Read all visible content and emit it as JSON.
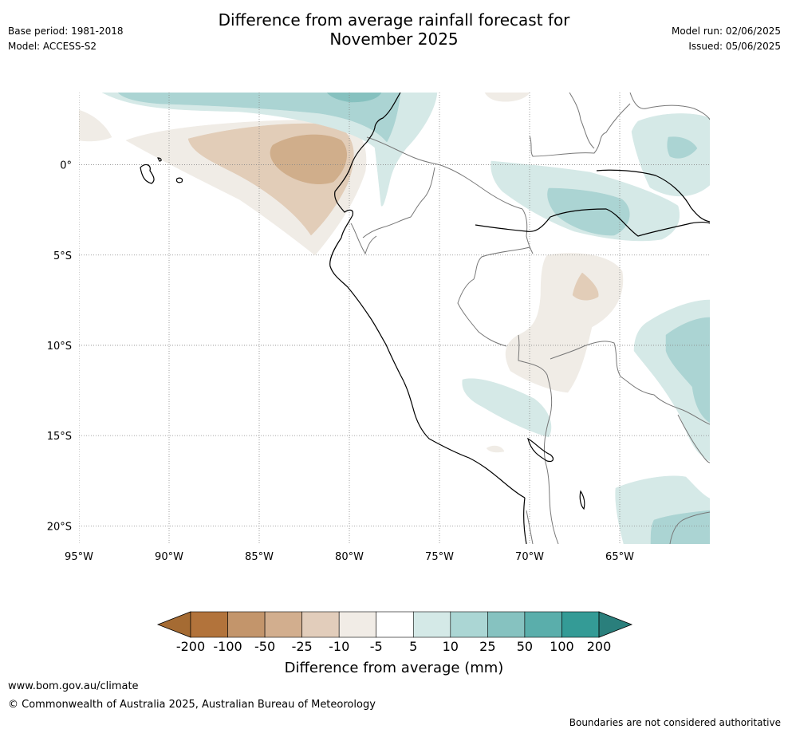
{
  "header": {
    "title_line1": "Difference from average rainfall forecast for",
    "title_line2": "November 2025",
    "base_period": "Base period: 1981-2018",
    "model": "Model: ACCESS-S2",
    "model_run": "Model run: 02/06/2025",
    "issued": "Issued: 05/06/2025"
  },
  "map": {
    "extent": {
      "lon": [
        -95,
        -60
      ],
      "lat": [
        -21,
        4
      ]
    },
    "lat_ticks": [
      {
        "value": 0,
        "label": "0°"
      },
      {
        "value": -5,
        "label": "5°S"
      },
      {
        "value": -10,
        "label": "10°S"
      },
      {
        "value": -15,
        "label": "15°S"
      },
      {
        "value": -20,
        "label": "20°S"
      }
    ],
    "lon_ticks": [
      {
        "value": -95,
        "label": "95°W"
      },
      {
        "value": -90,
        "label": "90°W"
      },
      {
        "value": -85,
        "label": "85°W"
      },
      {
        "value": -80,
        "label": "80°W"
      },
      {
        "value": -75,
        "label": "75°W"
      },
      {
        "value": -70,
        "label": "70°W"
      },
      {
        "value": -65,
        "label": "65°W"
      }
    ],
    "colors": {
      "dry_light": "#f0ece6",
      "dry_mid": "#e2cdb8",
      "dry_strong": "#d0ae8b",
      "wet_light": "#d5e9e7",
      "wet_mid": "#abd4d3",
      "wet_strong": "#86c1bf",
      "coast": "#000000",
      "border": "#777777",
      "grid": "#888888"
    }
  },
  "colorbar": {
    "label": "Difference from average (mm)",
    "ticks": [
      "-200",
      "-100",
      "-50",
      "-25",
      "-10",
      "-5",
      "5",
      "10",
      "25",
      "50",
      "100",
      "200"
    ],
    "colors": [
      "#a56b33",
      "#b2733b",
      "#c3956b",
      "#d2ae8e",
      "#e2cdbb",
      "#f1ece6",
      "#ffffff",
      "#d4e9e7",
      "#abd6d4",
      "#86c2c0",
      "#5aaeab",
      "#349b96",
      "#2a7f7c"
    ]
  },
  "footer": {
    "url": "www.bom.gov.au/climate",
    "copyright": "© Commonwealth of Australia 2025, Australian Bureau of Meteorology",
    "note": "Boundaries are not considered authoritative"
  }
}
